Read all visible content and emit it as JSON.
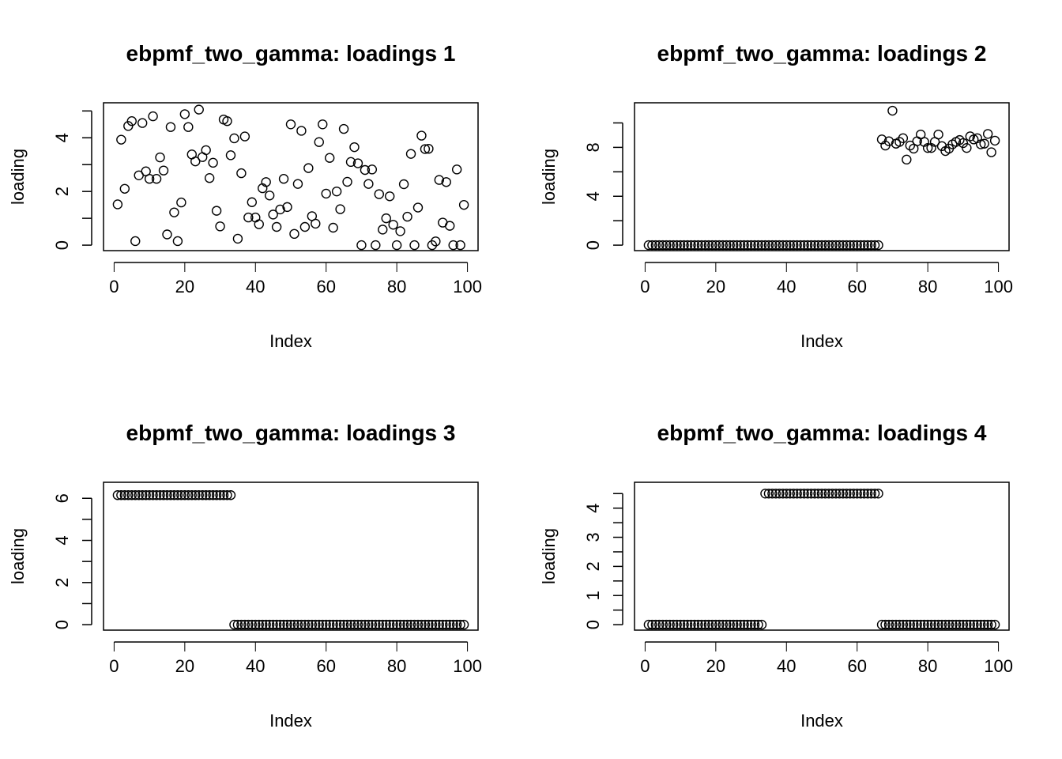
{
  "chart_data": [
    {
      "type": "scatter",
      "title": "ebpmf_two_gamma: loadings 1",
      "xlabel": "Index",
      "ylabel": "loading",
      "xlim": [
        0,
        100
      ],
      "ylim": [
        0,
        5.1
      ],
      "xticks": [
        "0",
        "20",
        "40",
        "60",
        "80",
        "100"
      ],
      "yticks": [
        "0",
        "2",
        "4"
      ],
      "y": [
        1.52,
        3.93,
        2.1,
        4.44,
        4.62,
        0.15,
        2.6,
        4.55,
        2.75,
        2.47,
        4.8,
        2.47,
        3.27,
        2.78,
        0.4,
        4.4,
        1.22,
        0.15,
        1.59,
        4.88,
        4.4,
        3.38,
        3.12,
        5.05,
        3.28,
        3.54,
        2.5,
        3.07,
        1.28,
        0.7,
        4.68,
        4.62,
        3.35,
        3.98,
        0.24,
        2.68,
        4.05,
        1.03,
        1.6,
        1.03,
        0.78,
        2.12,
        2.35,
        1.85,
        1.14,
        0.68,
        1.33,
        2.47,
        1.42,
        4.5,
        0.42,
        2.28,
        4.26,
        0.68,
        2.87,
        1.08,
        0.8,
        3.84,
        4.5,
        1.92,
        3.25,
        0.65,
        2.0,
        1.34,
        4.33,
        2.36,
        3.1,
        3.65,
        3.05,
        0.0,
        2.8,
        2.28,
        2.82,
        0.0,
        1.9,
        0.58,
        1.0,
        1.82,
        0.76,
        0.0,
        0.52,
        2.27,
        1.06,
        3.4,
        0.0,
        1.4,
        4.08,
        3.58,
        3.59,
        0.0,
        0.14,
        2.43,
        0.84,
        2.35,
        0.72,
        0.0,
        2.82,
        0.0,
        1.5
      ]
    },
    {
      "type": "scatter",
      "title": "ebpmf_two_gamma: loadings 2",
      "xlabel": "Index",
      "ylabel": "loading",
      "xlim": [
        0,
        100
      ],
      "ylim": [
        0,
        11.2
      ],
      "xticks": [
        "0",
        "20",
        "40",
        "60",
        "80",
        "100"
      ],
      "yticks": [
        "0",
        "4",
        "8"
      ],
      "y": [
        0,
        0,
        0,
        0,
        0,
        0,
        0,
        0,
        0,
        0,
        0,
        0,
        0,
        0,
        0,
        0,
        0,
        0,
        0,
        0,
        0,
        0,
        0,
        0,
        0,
        0,
        0,
        0,
        0,
        0,
        0,
        0,
        0,
        0,
        0,
        0,
        0,
        0,
        0,
        0,
        0,
        0,
        0,
        0,
        0,
        0,
        0,
        0,
        0,
        0,
        0,
        0,
        0,
        0,
        0,
        0,
        0,
        0,
        0,
        0,
        0,
        0,
        0,
        0,
        0,
        0,
        8.65,
        8.15,
        8.5,
        11.0,
        8.3,
        8.45,
        8.75,
        7.0,
        8.15,
        7.9,
        8.5,
        9.05,
        8.45,
        7.95,
        7.95,
        8.45,
        9.05,
        8.1,
        7.7,
        7.9,
        8.25,
        8.45,
        8.6,
        8.35,
        7.95,
        8.9,
        8.65,
        8.75,
        8.25,
        8.3,
        9.1,
        7.6,
        8.55
      ]
    },
    {
      "type": "scatter",
      "title": "ebpmf_two_gamma: loadings 3",
      "xlabel": "Index",
      "ylabel": "loading",
      "xlim": [
        0,
        100
      ],
      "ylim": [
        0,
        6.5
      ],
      "xticks": [
        "0",
        "20",
        "40",
        "60",
        "80",
        "100"
      ],
      "yticks": [
        "0",
        "2",
        "4",
        "6"
      ],
      "y": [
        6.15,
        6.15,
        6.15,
        6.15,
        6.15,
        6.15,
        6.15,
        6.15,
        6.15,
        6.15,
        6.15,
        6.15,
        6.15,
        6.15,
        6.15,
        6.15,
        6.15,
        6.15,
        6.15,
        6.15,
        6.15,
        6.15,
        6.15,
        6.15,
        6.15,
        6.15,
        6.15,
        6.15,
        6.15,
        6.15,
        6.15,
        6.15,
        6.15,
        0,
        0,
        0,
        0,
        0,
        0,
        0,
        0,
        0,
        0,
        0,
        0,
        0,
        0,
        0,
        0,
        0,
        0,
        0,
        0,
        0,
        0,
        0,
        0,
        0,
        0,
        0,
        0,
        0,
        0,
        0,
        0,
        0,
        0,
        0,
        0,
        0,
        0,
        0,
        0,
        0,
        0,
        0,
        0,
        0,
        0,
        0,
        0,
        0,
        0,
        0,
        0,
        0,
        0,
        0,
        0,
        0,
        0,
        0,
        0,
        0,
        0,
        0,
        0,
        0,
        0
      ]
    },
    {
      "type": "scatter",
      "title": "ebpmf_two_gamma: loadings 4",
      "xlabel": "Index",
      "ylabel": "loading",
      "xlim": [
        0,
        100
      ],
      "ylim": [
        0,
        4.7
      ],
      "xticks": [
        "0",
        "20",
        "40",
        "60",
        "80",
        "100"
      ],
      "yticks": [
        "0",
        "1",
        "2",
        "3",
        "4"
      ],
      "y": [
        0,
        0,
        0,
        0,
        0,
        0,
        0,
        0,
        0,
        0,
        0,
        0,
        0,
        0,
        0,
        0,
        0,
        0,
        0,
        0,
        0,
        0,
        0,
        0,
        0,
        0,
        0,
        0,
        0,
        0,
        0,
        0,
        0,
        4.5,
        4.5,
        4.5,
        4.5,
        4.5,
        4.5,
        4.5,
        4.5,
        4.5,
        4.5,
        4.5,
        4.5,
        4.5,
        4.5,
        4.5,
        4.5,
        4.5,
        4.5,
        4.5,
        4.5,
        4.5,
        4.5,
        4.5,
        4.5,
        4.5,
        4.5,
        4.5,
        4.5,
        4.5,
        4.5,
        4.5,
        4.5,
        4.5,
        0,
        0,
        0,
        0,
        0,
        0,
        0,
        0,
        0,
        0,
        0,
        0,
        0,
        0,
        0,
        0,
        0,
        0,
        0,
        0,
        0,
        0,
        0,
        0,
        0,
        0,
        0,
        0,
        0,
        0,
        0,
        0,
        0
      ]
    }
  ]
}
